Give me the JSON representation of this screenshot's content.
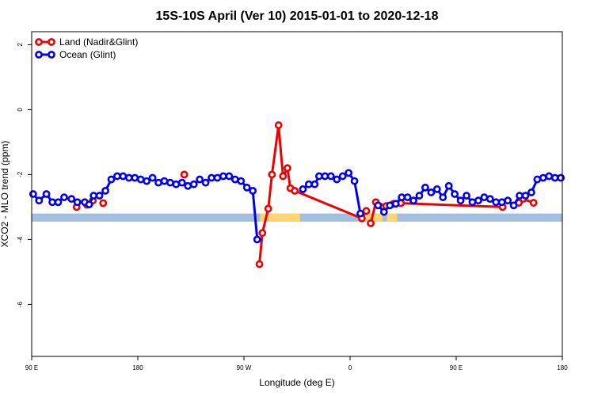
{
  "chart_data": {
    "type": "line",
    "title": "15S-10S April (Ver 10)   2015-01-01 to 2020-12-18",
    "xlabel": "Longitude (deg E)",
    "ylabel": "XCO2 - MLO trend (ppm)",
    "xlim": [
      90,
      450
    ],
    "ylim": [
      -7.6,
      2.4
    ],
    "x_ticks": [
      {
        "value": 90,
        "label": "90 E"
      },
      {
        "value": 162,
        "label": "180"
      },
      {
        "value": 234,
        "label": "90 W"
      },
      {
        "value": 306,
        "label": "0"
      },
      {
        "value": 378,
        "label": "90 E"
      },
      {
        "value": 450,
        "label": "180"
      }
    ],
    "y_ticks": [
      {
        "value": 2,
        "label": "2"
      },
      {
        "value": 0,
        "label": "0"
      },
      {
        "value": -2,
        "label": "-2"
      },
      {
        "value": -4,
        "label": "-4"
      },
      {
        "value": -6,
        "label": "-6"
      }
    ],
    "grid": false,
    "legend_position": "top-left",
    "series": [
      {
        "name": "Land (Nadir&Glint)",
        "color": "#ee0000",
        "style": "points-and-segments",
        "points": [
          [
            120.5,
            -3.0
          ],
          [
            127.5,
            -2.93
          ],
          [
            131.5,
            -2.8
          ],
          [
            138.5,
            -2.88
          ],
          [
            193.5,
            -2.0
          ],
          [
            244.5,
            -4.76
          ],
          [
            246.5,
            -3.8
          ],
          [
            250.5,
            -3.05
          ],
          [
            253.0,
            -2.0
          ],
          [
            257.5,
            -0.48
          ],
          [
            260.5,
            -2.05
          ],
          [
            263.5,
            -1.8
          ],
          [
            265.5,
            -2.42
          ],
          [
            268.5,
            -2.5
          ],
          [
            314.0,
            -3.35
          ],
          [
            317.0,
            -3.12
          ],
          [
            320.0,
            -3.5
          ],
          [
            323.5,
            -2.85
          ],
          [
            330.5,
            -2.97
          ],
          [
            335.5,
            -2.9
          ],
          [
            340.5,
            -2.88
          ],
          [
            409.5,
            -3.0
          ],
          [
            420.5,
            -2.87
          ],
          [
            423.5,
            -2.75
          ],
          [
            430.5,
            -2.87
          ]
        ],
        "segments": [
          [
            5,
            15
          ],
          [
            16,
            21
          ],
          [
            23,
            24
          ]
        ]
      },
      {
        "name": "Ocean (Glint)",
        "color": "#0000ee",
        "style": "points-and-segments",
        "points": [
          [
            91,
            -2.6
          ],
          [
            95,
            -2.8
          ],
          [
            100,
            -2.6
          ],
          [
            104,
            -2.85
          ],
          [
            108,
            -2.85
          ],
          [
            112,
            -2.7
          ],
          [
            117,
            -2.75
          ],
          [
            121,
            -2.85
          ],
          [
            126,
            -2.85
          ],
          [
            129,
            -2.92
          ],
          [
            132,
            -2.65
          ],
          [
            136,
            -2.65
          ],
          [
            140,
            -2.5
          ],
          [
            144,
            -2.15
          ],
          [
            148,
            -2.05
          ],
          [
            152,
            -2.05
          ],
          [
            156,
            -2.1
          ],
          [
            160,
            -2.1
          ],
          [
            164,
            -2.15
          ],
          [
            168,
            -2.2
          ],
          [
            172,
            -2.1
          ],
          [
            176,
            -2.25
          ],
          [
            180,
            -2.2
          ],
          [
            184,
            -2.25
          ],
          [
            188,
            -2.3
          ],
          [
            192,
            -2.25
          ],
          [
            196,
            -2.35
          ],
          [
            200,
            -2.3
          ],
          [
            204,
            -2.15
          ],
          [
            208,
            -2.25
          ],
          [
            212,
            -2.1
          ],
          [
            216,
            -2.1
          ],
          [
            220,
            -2.05
          ],
          [
            224,
            -2.05
          ],
          [
            228,
            -2.15
          ],
          [
            232,
            -2.2
          ],
          [
            236,
            -2.4
          ],
          [
            240,
            -2.5
          ],
          [
            243,
            -4.0
          ],
          [
            274,
            -2.45
          ],
          [
            278,
            -2.3
          ],
          [
            282,
            -2.3
          ],
          [
            285,
            -2.05
          ],
          [
            289,
            -2.05
          ],
          [
            293,
            -2.05
          ],
          [
            297,
            -2.15
          ],
          [
            301,
            -2.05
          ],
          [
            305,
            -1.95
          ],
          [
            309,
            -2.2
          ],
          [
            313,
            -3.2
          ],
          [
            325,
            -2.95
          ],
          [
            329,
            -3.15
          ],
          [
            333,
            -2.95
          ],
          [
            337,
            -2.9
          ],
          [
            341,
            -2.7
          ],
          [
            345,
            -2.7
          ],
          [
            349,
            -2.8
          ],
          [
            353,
            -2.65
          ],
          [
            357,
            -2.4
          ],
          [
            361,
            -2.55
          ],
          [
            365,
            -2.45
          ],
          [
            369,
            -2.7
          ],
          [
            373,
            -2.35
          ],
          [
            377,
            -2.6
          ],
          [
            381,
            -2.8
          ],
          [
            385,
            -2.65
          ],
          [
            389,
            -2.85
          ],
          [
            393,
            -2.8
          ],
          [
            397,
            -2.7
          ],
          [
            401,
            -2.75
          ],
          [
            405,
            -2.85
          ],
          [
            409,
            -2.85
          ],
          [
            413,
            -2.8
          ],
          [
            417,
            -2.95
          ],
          [
            421,
            -2.65
          ],
          [
            425,
            -2.65
          ],
          [
            429,
            -2.55
          ],
          [
            433,
            -2.15
          ],
          [
            437,
            -2.1
          ],
          [
            441,
            -2.05
          ],
          [
            445,
            -2.1
          ],
          [
            449,
            -2.1
          ]
        ],
        "segments": [
          [
            0,
            38
          ],
          [
            39,
            49
          ],
          [
            50,
            81
          ]
        ]
      }
    ],
    "background_bands": [
      {
        "name": "ocean-band",
        "color": "#a3bfdf",
        "y_top": -3.2,
        "y_bottom": -3.45
      },
      {
        "name": "land-band",
        "color": "#ffd573",
        "y_top": -3.2,
        "y_bottom": -3.45,
        "x_ranges": [
          [
            245,
            272
          ],
          [
            312,
            328
          ],
          [
            331,
            338
          ]
        ]
      }
    ]
  }
}
